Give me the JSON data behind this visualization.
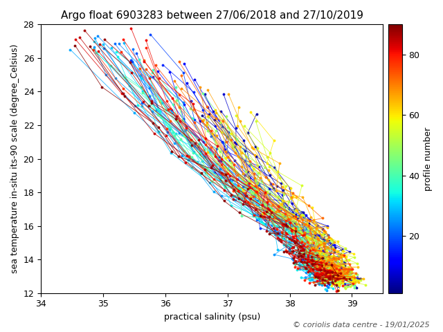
{
  "title": "Argo float 6903283 between 27/06/2018 and 27/10/2019",
  "xlabel": "practical salinity (psu)",
  "ylabel": "sea temperature in-situ its-90 scale (degree_Celsius)",
  "cbar_label": "profile number",
  "xlim": [
    34,
    39.5
  ],
  "ylim": [
    12,
    28
  ],
  "xticks": [
    34,
    35,
    36,
    37,
    38,
    39
  ],
  "yticks": [
    12,
    14,
    16,
    18,
    20,
    22,
    24,
    26,
    28
  ],
  "n_profiles": 90,
  "colormap": "jet",
  "cbar_ticks": [
    20,
    40,
    60,
    80
  ],
  "cbar_vmin": 1,
  "cbar_vmax": 90,
  "footnote": "© coriolis data centre - 19/01/2025",
  "title_fontsize": 11,
  "label_fontsize": 9,
  "tick_fontsize": 9,
  "cbar_label_fontsize": 9,
  "footnote_fontsize": 8,
  "seed": 12345,
  "figwidth": 6.4,
  "figheight": 4.8,
  "dpi": 100
}
